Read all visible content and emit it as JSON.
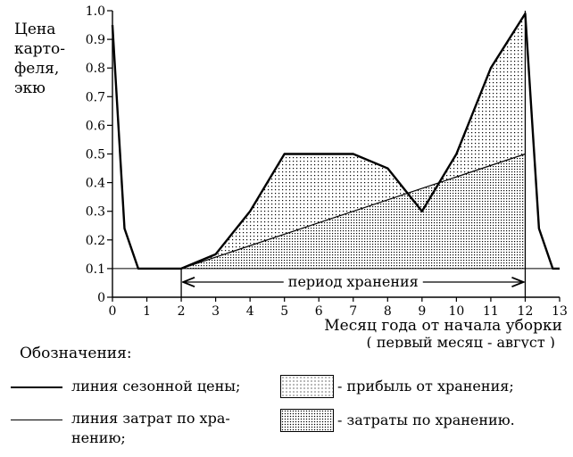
{
  "chart_data": {
    "type": "area",
    "ylabel": [
      "Цена",
      "карто-",
      "феля,",
      "экю"
    ],
    "xlabel_line1": "Месяц года от начала уборки",
    "xlabel_line2": "( первый месяц - август )",
    "xlim": [
      0,
      13
    ],
    "ylim": [
      0,
      1.0
    ],
    "xticks": [
      "0",
      "1",
      "2",
      "3",
      "4",
      "5",
      "6",
      "7",
      "8",
      "9",
      "10",
      "11",
      "12",
      "13"
    ],
    "yticks": [
      "0",
      "0.1",
      "0.2",
      "0.3",
      "0.4",
      "0.5",
      "0.6",
      "0.7",
      "0.8",
      "0.9",
      "1.0"
    ],
    "storage_period_label": "период хранения",
    "storage_period": [
      2,
      12
    ],
    "series": [
      {
        "name": "линия сезонной цены",
        "x": [
          0,
          0.35,
          0.75,
          2,
          3,
          4,
          5,
          6,
          7,
          8,
          9,
          10,
          11,
          12,
          12.4,
          12.8,
          13
        ],
        "y": [
          0.95,
          0.24,
          0.1,
          0.1,
          0.15,
          0.3,
          0.5,
          0.5,
          0.5,
          0.45,
          0.3,
          0.5,
          0.8,
          0.99,
          0.24,
          0.1,
          0.1
        ]
      },
      {
        "name": "линия затрат по хранению",
        "x": [
          2,
          12
        ],
        "y": [
          0.1,
          0.5
        ]
      }
    ],
    "colors": {
      "line": "#000000",
      "fill_profit": "#c8c8c8",
      "fill_cost": "#a0a0a0",
      "background": "#ffffff"
    }
  },
  "legend": {
    "title": "Обозначения:",
    "season_line": "линия сезонной цены;",
    "cost_line_1": "линия затрат по хра-",
    "cost_line_2": "нению;",
    "profit_fill": "- прибыль от хранения;",
    "cost_fill": "- затраты по хранению."
  }
}
